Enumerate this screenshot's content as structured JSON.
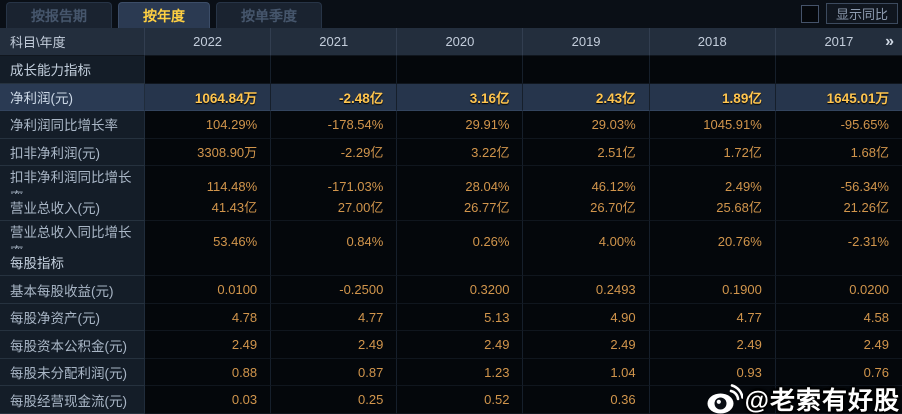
{
  "tabs": [
    {
      "label": "按报告期",
      "active": false
    },
    {
      "label": "按年度",
      "active": true
    },
    {
      "label": "按单季度",
      "active": false
    }
  ],
  "controls": {
    "show_yoy_label": "显示同比"
  },
  "table": {
    "corner_label": "科目\\年度",
    "years": [
      "2022",
      "2021",
      "2020",
      "2019",
      "2018",
      "2017"
    ],
    "more_icon": "»",
    "rows": [
      {
        "type": "section",
        "highlight": false,
        "label": "成长能力指标",
        "values": [
          "",
          "",
          "",
          "",
          "",
          ""
        ]
      },
      {
        "type": "data",
        "highlight": true,
        "label": "净利润(元)",
        "values": [
          "1064.84万",
          "-2.48亿",
          "3.16亿",
          "2.43亿",
          "1.89亿",
          "1645.01万"
        ]
      },
      {
        "type": "data",
        "highlight": false,
        "label": "净利润同比增长率",
        "values": [
          "104.29%",
          "-178.54%",
          "29.91%",
          "29.03%",
          "1045.91%",
          "-95.65%"
        ]
      },
      {
        "type": "data",
        "highlight": false,
        "label": "扣非净利润(元)",
        "values": [
          "3308.90万",
          "-2.29亿",
          "3.22亿",
          "2.51亿",
          "1.72亿",
          "1.68亿"
        ]
      },
      {
        "type": "data",
        "highlight": false,
        "label": "扣非净利润同比增长率",
        "values": [
          "114.48%",
          "-171.03%",
          "28.04%",
          "46.12%",
          "2.49%",
          "-56.34%"
        ]
      },
      {
        "type": "data",
        "highlight": false,
        "label": "营业总收入(元)",
        "values": [
          "41.43亿",
          "27.00亿",
          "26.77亿",
          "26.70亿",
          "25.68亿",
          "21.26亿"
        ]
      },
      {
        "type": "data",
        "highlight": false,
        "label": "营业总收入同比增长率",
        "values": [
          "53.46%",
          "0.84%",
          "0.26%",
          "4.00%",
          "20.76%",
          "-2.31%"
        ]
      },
      {
        "type": "section",
        "highlight": false,
        "label": "每股指标",
        "values": [
          "",
          "",
          "",
          "",
          "",
          ""
        ]
      },
      {
        "type": "data",
        "highlight": false,
        "label": "基本每股收益(元)",
        "values": [
          "0.0100",
          "-0.2500",
          "0.3200",
          "0.2493",
          "0.1900",
          "0.0200"
        ]
      },
      {
        "type": "data",
        "highlight": false,
        "label": "每股净资产(元)",
        "values": [
          "4.78",
          "4.77",
          "5.13",
          "4.90",
          "4.77",
          "4.58"
        ]
      },
      {
        "type": "data",
        "highlight": false,
        "label": "每股资本公积金(元)",
        "values": [
          "2.49",
          "2.49",
          "2.49",
          "2.49",
          "2.49",
          "2.49"
        ]
      },
      {
        "type": "data",
        "highlight": false,
        "label": "每股未分配利润(元)",
        "values": [
          "0.88",
          "0.87",
          "1.23",
          "1.04",
          "0.93",
          "0.76"
        ]
      },
      {
        "type": "data",
        "highlight": false,
        "label": "每股经营现金流(元)",
        "values": [
          "0.03",
          "0.25",
          "0.52",
          "0.36",
          "",
          ""
        ]
      }
    ]
  },
  "watermark": {
    "text": "@老索有好股"
  },
  "colors": {
    "accent_gold": "#ffd042",
    "value_orange": "#d1954c",
    "highlight_row": "#26354c",
    "header_bg": "#232e3d"
  }
}
